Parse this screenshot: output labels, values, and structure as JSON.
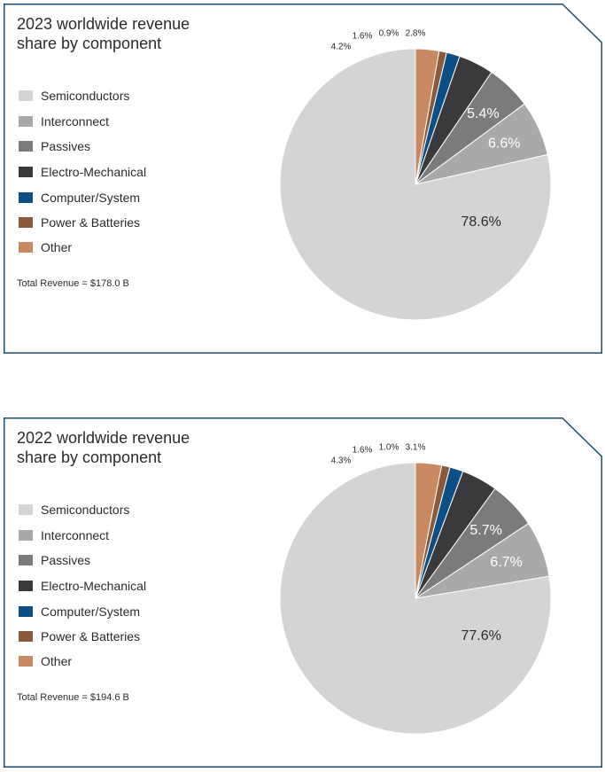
{
  "colors": {
    "frame": "#1b4e73",
    "slices": [
      "#d4d4d6",
      "#a9a9ac",
      "#7b7b7e",
      "#3a3a3c",
      "#0b4f86",
      "#8a5a3b",
      "#c98a63"
    ],
    "inside_label_light": "#ffffff",
    "inside_label_dark": "#2b2b2b"
  },
  "chart_data": [
    {
      "type": "pie",
      "title": "2023 worldwide revenue share by component",
      "title_lines": [
        "2023 worldwide revenue",
        "share by component"
      ],
      "total_label": "Total Revenue = $178.0 B",
      "categories": [
        "Semiconductors",
        "Interconnect",
        "Passives",
        "Electro-Mechanical",
        "Computer/System",
        "Power & Batteries",
        "Other"
      ],
      "values": [
        78.6,
        6.6,
        5.4,
        4.2,
        1.6,
        0.9,
        2.8
      ],
      "labels": [
        "78.6%",
        "6.6%",
        "5.4%",
        "4.2%",
        "1.6%",
        "0.9%",
        "2.8%"
      ],
      "legend_position": "left"
    },
    {
      "type": "pie",
      "title": "2022 worldwide revenue share by component",
      "title_lines": [
        "2022 worldwide revenue",
        "share by component"
      ],
      "total_label": "Total Revenue = $194.6 B",
      "categories": [
        "Semiconductors",
        "Interconnect",
        "Passives",
        "Electro-Mechanical",
        "Computer/System",
        "Power & Batteries",
        "Other"
      ],
      "values": [
        77.6,
        6.7,
        5.7,
        4.3,
        1.6,
        1.0,
        3.1
      ],
      "labels": [
        "77.6%",
        "6.7%",
        "5.7%",
        "4.3%",
        "1.6%",
        "1.0%",
        "3.1%"
      ],
      "legend_position": "left"
    }
  ]
}
